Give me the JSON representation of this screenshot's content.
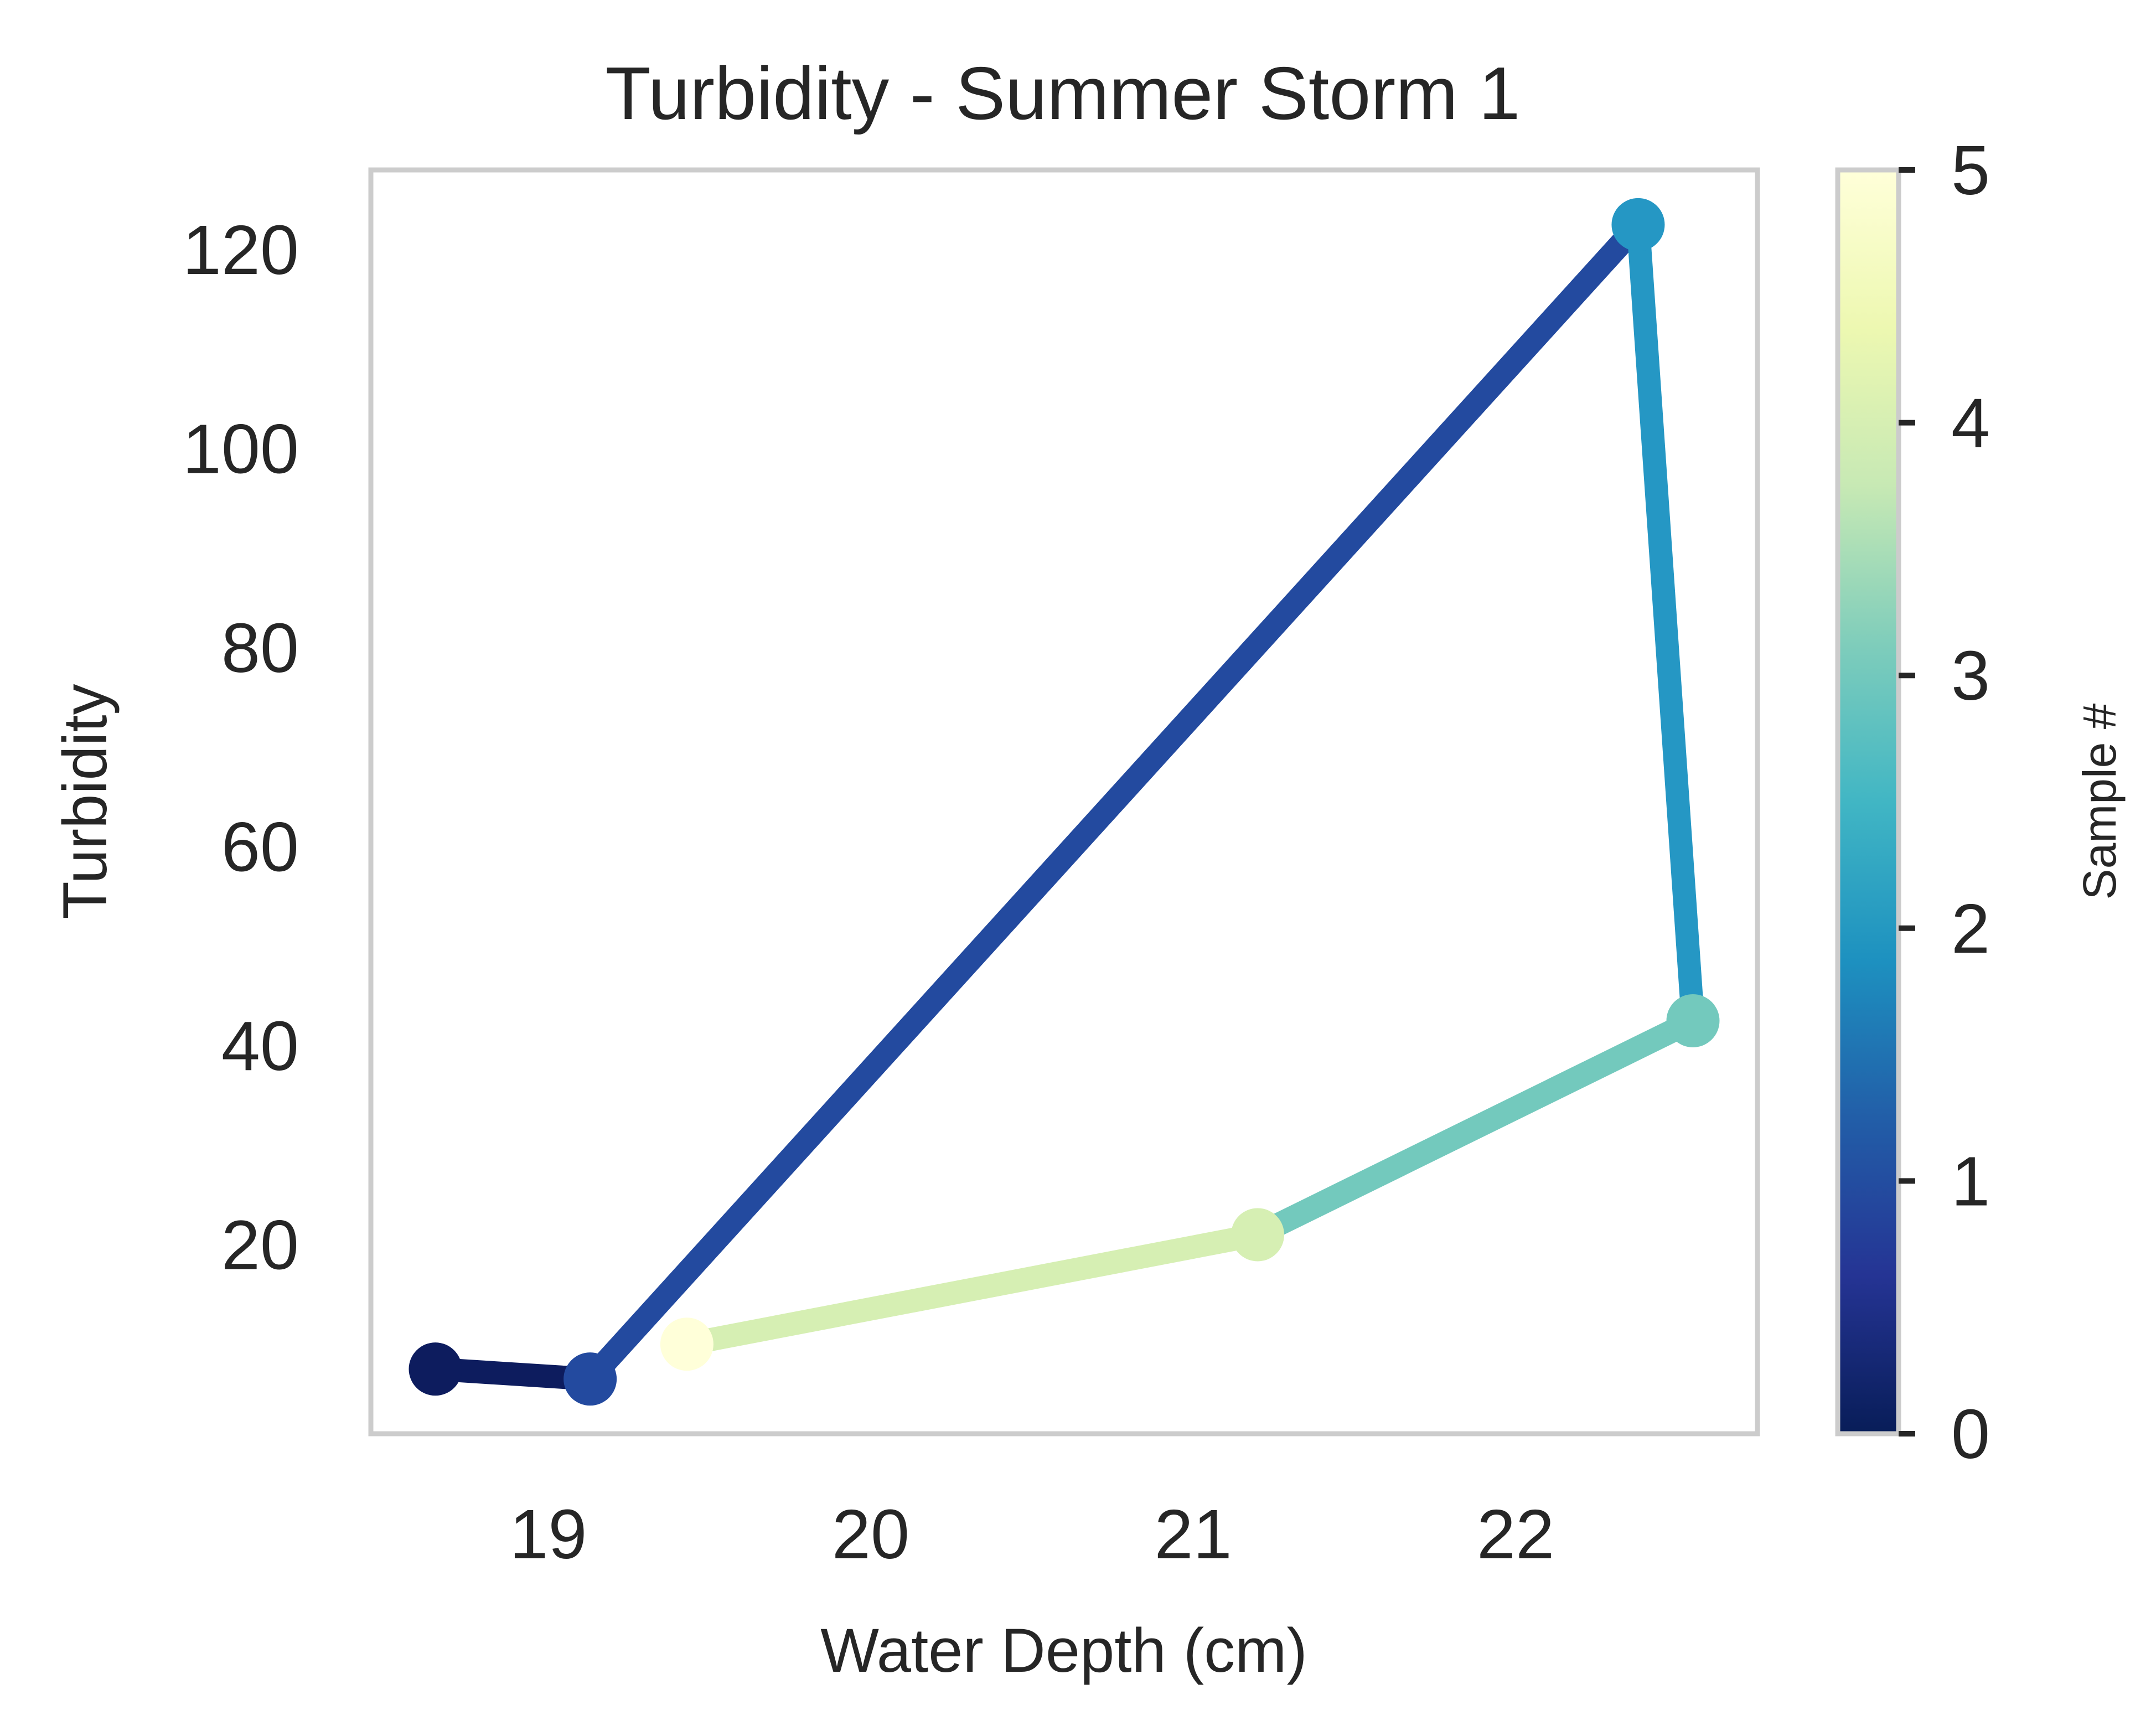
{
  "chart_data": {
    "type": "line",
    "title": "Turbidity - Summer Storm 1",
    "xlabel": "Water Depth (cm)",
    "ylabel": "Turbidity",
    "xlim": [
      18.45,
      22.75
    ],
    "ylim": [
      1,
      128
    ],
    "xticks": [
      19,
      20,
      21,
      22
    ],
    "yticks": [
      20,
      40,
      60,
      80,
      100,
      120
    ],
    "grid": false,
    "series": [
      {
        "x": [
          18.65,
          19.13,
          22.38,
          22.55,
          21.2,
          19.43
        ],
        "y": [
          7.5,
          6.5,
          122.5,
          42.5,
          21.0,
          10.0
        ],
        "sample": [
          0,
          1,
          2,
          3,
          4,
          5
        ],
        "segment_colors": [
          "#0d1c5e",
          "#234a9f",
          "#2597c4",
          "#73c9bd",
          "#d6efb3",
          "#ffffd9"
        ]
      }
    ],
    "colorbar": {
      "label": "Sample #",
      "range": [
        0,
        5
      ],
      "ticks": [
        0,
        1,
        2,
        3,
        4,
        5
      ],
      "colormap": "YlGnBu_r",
      "stops": [
        "#081d58",
        "#253494",
        "#225ea8",
        "#1d91c0",
        "#41b6c4",
        "#7fcdbb",
        "#c7e9b4",
        "#edf8b1",
        "#ffffd9"
      ]
    }
  }
}
